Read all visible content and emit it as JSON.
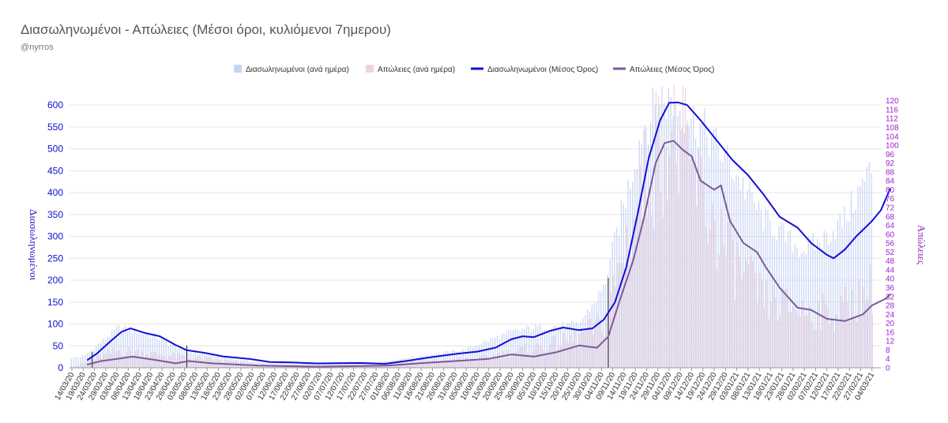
{
  "chart_data": {
    "type": "bar",
    "title": "Διασωληνωμένοι - Απώλειες (Μέσοι όροι, κυλιόμενοι 7ημερου)",
    "subtitle": "@nyrros",
    "ylabel": "Διασωληνωμένοι",
    "y2label": "Απώλειες",
    "ylim": [
      0,
      620
    ],
    "y2lim": [
      0,
      122
    ],
    "yticks": [
      0,
      50,
      100,
      150,
      200,
      250,
      300,
      350,
      400,
      450,
      500,
      550,
      600
    ],
    "y2ticks": [
      0,
      4,
      8,
      12,
      16,
      20,
      24,
      28,
      32,
      36,
      40,
      44,
      48,
      52,
      56,
      60,
      64,
      68,
      72,
      76,
      80,
      84,
      88,
      92,
      96,
      100,
      104,
      108,
      112,
      116,
      120
    ],
    "grid": true,
    "legend_position": "top-center",
    "x_start": "2020-03-14",
    "x_end": "2021-03-04",
    "xtick_labels": [
      "14/03/20",
      "19/03/20",
      "24/03/20",
      "29/03/20",
      "03/04/20",
      "08/04/20",
      "13/04/20",
      "18/04/20",
      "23/04/20",
      "28/04/20",
      "03/05/20",
      "08/05/20",
      "13/05/20",
      "18/05/20",
      "23/05/20",
      "28/05/20",
      "02/06/20",
      "07/06/20",
      "12/06/20",
      "17/06/20",
      "22/06/20",
      "27/06/20",
      "02/07/20",
      "07/07/20",
      "12/07/20",
      "17/07/20",
      "22/07/20",
      "27/07/20",
      "01/08/20",
      "06/08/20",
      "11/08/20",
      "16/08/20",
      "21/08/20",
      "26/08/20",
      "31/08/20",
      "05/09/20",
      "10/09/20",
      "15/09/20",
      "20/09/20",
      "25/09/20",
      "30/09/20",
      "05/10/20",
      "10/10/20",
      "15/10/20",
      "20/10/20",
      "25/10/20",
      "30/10/20",
      "04/11/20",
      "09/11/20",
      "14/11/20",
      "19/11/20",
      "24/11/20",
      "29/11/20",
      "04/12/20",
      "09/12/20",
      "14/12/20",
      "19/12/20",
      "24/12/20",
      "29/12/20",
      "03/01/21",
      "08/01/21",
      "13/01/21",
      "18/01/21",
      "23/01/21",
      "28/01/21",
      "02/02/21",
      "07/02/21",
      "12/02/21",
      "17/02/21",
      "22/02/21",
      "27/02/21",
      "04/03/21"
    ],
    "marker_dates": [
      "2020-03-23",
      "2020-05-04",
      "2020-11-07"
    ],
    "series": [
      {
        "name": "Διασωληνωμένοι (ανά ημέρα)",
        "kind": "bar",
        "axis": "left",
        "color": "#c8d4f4",
        "anchors": [
          [
            "2020-03-14",
            22
          ],
          [
            "2020-03-20",
            28
          ],
          [
            "2020-03-24",
            45
          ],
          [
            "2020-04-04",
            92
          ],
          [
            "2020-04-20",
            72
          ],
          [
            "2020-05-03",
            38
          ],
          [
            "2020-06-05",
            12
          ],
          [
            "2020-07-01",
            8
          ],
          [
            "2020-07-25",
            10
          ],
          [
            "2020-08-15",
            26
          ],
          [
            "2020-09-05",
            42
          ],
          [
            "2020-09-25",
            82
          ],
          [
            "2020-10-05",
            92
          ],
          [
            "2020-10-15",
            96
          ],
          [
            "2020-10-25",
            98
          ],
          [
            "2020-11-05",
            180
          ],
          [
            "2020-11-15",
            390
          ],
          [
            "2020-11-22",
            540
          ],
          [
            "2020-12-01",
            618
          ],
          [
            "2020-12-10",
            590
          ],
          [
            "2020-12-20",
            540
          ],
          [
            "2021-01-01",
            460
          ],
          [
            "2021-01-15",
            340
          ],
          [
            "2021-02-01",
            270
          ],
          [
            "2021-02-10",
            290
          ],
          [
            "2021-02-20",
            340
          ],
          [
            "2021-03-04",
            455
          ]
        ]
      },
      {
        "name": "Απώλειες (ανά ημέρα)",
        "kind": "bar",
        "axis": "right",
        "color": "#f0d4dc",
        "anchors": [
          [
            "2020-03-14",
            0
          ],
          [
            "2020-03-24",
            4
          ],
          [
            "2020-04-04",
            8
          ],
          [
            "2020-04-20",
            6
          ],
          [
            "2020-05-10",
            4
          ],
          [
            "2020-06-10",
            1
          ],
          [
            "2020-07-15",
            2
          ],
          [
            "2020-08-15",
            3
          ],
          [
            "2020-09-10",
            4
          ],
          [
            "2020-10-01",
            8
          ],
          [
            "2020-10-20",
            12
          ],
          [
            "2020-11-05",
            20
          ],
          [
            "2020-11-15",
            56
          ],
          [
            "2020-11-25",
            90
          ],
          [
            "2020-12-01",
            104
          ],
          [
            "2020-12-10",
            96
          ],
          [
            "2020-12-20",
            72
          ],
          [
            "2021-01-01",
            48
          ],
          [
            "2021-01-15",
            30
          ],
          [
            "2021-02-01",
            26
          ],
          [
            "2021-02-15",
            24
          ],
          [
            "2021-03-04",
            36
          ]
        ]
      },
      {
        "name": "Διασωληνωμένοι (Μέσος Όρος)",
        "kind": "line",
        "axis": "left",
        "color": "#1010d8",
        "anchors": [
          [
            "2020-03-21",
            18
          ],
          [
            "2020-03-25",
            32
          ],
          [
            "2020-03-31",
            60
          ],
          [
            "2020-04-05",
            82
          ],
          [
            "2020-04-09",
            90
          ],
          [
            "2020-04-15",
            80
          ],
          [
            "2020-04-22",
            72
          ],
          [
            "2020-04-29",
            52
          ],
          [
            "2020-05-04",
            40
          ],
          [
            "2020-05-12",
            34
          ],
          [
            "2020-05-20",
            26
          ],
          [
            "2020-06-01",
            20
          ],
          [
            "2020-06-10",
            13
          ],
          [
            "2020-06-20",
            12
          ],
          [
            "2020-07-01",
            10
          ],
          [
            "2020-07-20",
            11
          ],
          [
            "2020-07-31",
            9
          ],
          [
            "2020-08-10",
            16
          ],
          [
            "2020-08-20",
            24
          ],
          [
            "2020-09-01",
            32
          ],
          [
            "2020-09-10",
            37
          ],
          [
            "2020-09-18",
            46
          ],
          [
            "2020-09-25",
            65
          ],
          [
            "2020-09-30",
            72
          ],
          [
            "2020-10-05",
            70
          ],
          [
            "2020-10-12",
            84
          ],
          [
            "2020-10-18",
            92
          ],
          [
            "2020-10-25",
            86
          ],
          [
            "2020-10-31",
            90
          ],
          [
            "2020-11-05",
            110
          ],
          [
            "2020-11-10",
            150
          ],
          [
            "2020-11-15",
            230
          ],
          [
            "2020-11-20",
            350
          ],
          [
            "2020-11-25",
            480
          ],
          [
            "2020-11-30",
            565
          ],
          [
            "2020-12-04",
            605
          ],
          [
            "2020-12-08",
            606
          ],
          [
            "2020-12-12",
            600
          ],
          [
            "2020-12-18",
            565
          ],
          [
            "2020-12-25",
            520
          ],
          [
            "2021-01-01",
            475
          ],
          [
            "2021-01-08",
            440
          ],
          [
            "2021-01-15",
            395
          ],
          [
            "2021-01-22",
            345
          ],
          [
            "2021-01-30",
            320
          ],
          [
            "2021-02-05",
            285
          ],
          [
            "2021-02-12",
            258
          ],
          [
            "2021-02-15",
            250
          ],
          [
            "2021-02-20",
            270
          ],
          [
            "2021-02-25",
            300
          ],
          [
            "2021-03-01",
            320
          ],
          [
            "2021-03-04",
            335
          ],
          [
            "2021-03-08",
            360
          ],
          [
            "2021-03-12",
            408
          ]
        ]
      },
      {
        "name": "Απώλειες (Μέσος Όρος)",
        "kind": "line",
        "axis": "right",
        "color": "#7a5a9a",
        "anchors": [
          [
            "2020-03-21",
            1.5
          ],
          [
            "2020-03-27",
            3
          ],
          [
            "2020-04-03",
            4
          ],
          [
            "2020-04-10",
            5
          ],
          [
            "2020-04-20",
            3.5
          ],
          [
            "2020-04-29",
            2
          ],
          [
            "2020-05-05",
            3
          ],
          [
            "2020-05-15",
            2
          ],
          [
            "2020-05-25",
            1.5
          ],
          [
            "2020-06-05",
            1
          ],
          [
            "2020-07-01",
            0.5
          ],
          [
            "2020-08-01",
            1
          ],
          [
            "2020-08-15",
            2
          ],
          [
            "2020-08-31",
            3
          ],
          [
            "2020-09-15",
            4
          ],
          [
            "2020-09-25",
            6
          ],
          [
            "2020-10-05",
            5
          ],
          [
            "2020-10-15",
            7
          ],
          [
            "2020-10-25",
            10
          ],
          [
            "2020-11-02",
            9
          ],
          [
            "2020-11-07",
            14
          ],
          [
            "2020-11-12",
            30
          ],
          [
            "2020-11-18",
            48
          ],
          [
            "2020-11-23",
            68
          ],
          [
            "2020-11-28",
            92
          ],
          [
            "2020-12-02",
            101
          ],
          [
            "2020-12-06",
            102
          ],
          [
            "2020-12-10",
            98
          ],
          [
            "2020-12-14",
            95
          ],
          [
            "2020-12-18",
            84
          ],
          [
            "2020-12-24",
            80
          ],
          [
            "2020-12-27",
            82
          ],
          [
            "2020-12-31",
            66
          ],
          [
            "2021-01-06",
            56
          ],
          [
            "2021-01-12",
            52
          ],
          [
            "2021-01-16",
            45
          ],
          [
            "2021-01-22",
            36
          ],
          [
            "2021-01-30",
            27
          ],
          [
            "2021-02-05",
            26
          ],
          [
            "2021-02-12",
            22
          ],
          [
            "2021-02-20",
            21
          ],
          [
            "2021-02-28",
            24
          ],
          [
            "2021-03-04",
            28
          ],
          [
            "2021-03-10",
            31
          ],
          [
            "2021-03-12",
            33
          ]
        ]
      }
    ]
  }
}
